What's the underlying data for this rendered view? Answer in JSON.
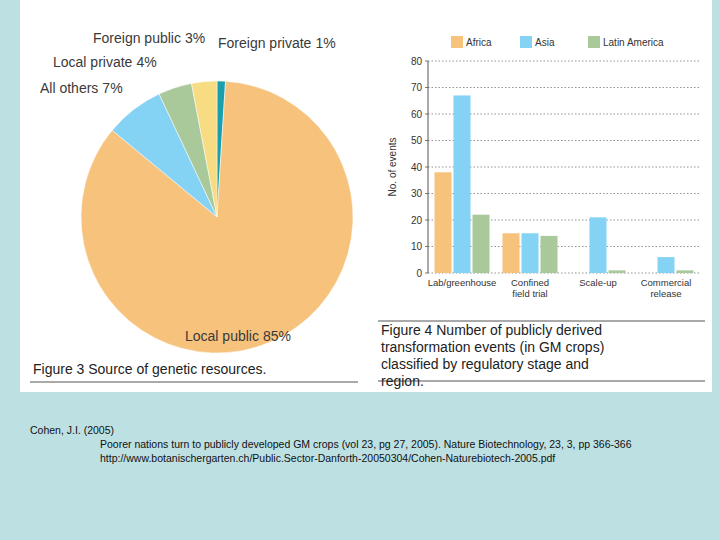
{
  "chart_data": [
    {
      "type": "pie",
      "title": "Figure 3  Source of genetic resources.",
      "categories": [
        "Foreign private",
        "Local public",
        "All others",
        "Local private",
        "Foreign public"
      ],
      "values": [
        1,
        85,
        7,
        4,
        3
      ],
      "value_labels": [
        "1%",
        "85%",
        "7%",
        "4%",
        "3%"
      ],
      "colors": [
        "#1a9fae",
        "#f6c27c",
        "#84d2f4",
        "#a9c99b",
        "#f7dc84"
      ]
    },
    {
      "type": "bar",
      "title": "Figure 4  Number of publicly derived transformation events (in GM crops) classified by regulatory stage and region.",
      "y_label": "No. of events",
      "categories": [
        "Lab/greenhouse",
        "Confined field trial",
        "Scale-up",
        "Commercial release"
      ],
      "series": [
        {
          "name": "Africa",
          "color": "#f6c27c",
          "values": [
            38,
            15,
            0,
            0
          ]
        },
        {
          "name": "Asia",
          "color": "#84d2f4",
          "values": [
            67,
            15,
            21,
            6
          ]
        },
        {
          "name": "Latin America",
          "color": "#a9c99b",
          "values": [
            22,
            14,
            1,
            1
          ]
        }
      ],
      "ylim": [
        0,
        80
      ],
      "yticks": [
        0,
        10,
        20,
        30,
        40,
        50,
        60,
        70,
        80
      ],
      "grid": true,
      "legend": "top"
    }
  ],
  "citation": {
    "author": "Cohen, J.I. (2005)",
    "lines": [
      "Poorer nations turn to publicly developed GM crops (vol 23, pg 27, 2005). Nature Biotechnology, 23, 3, pp 366-366",
      "http://www.botanischergarten.ch/Public.Sector-Danforth-20050304/Cohen-Naturebiotech-2005.pdf"
    ]
  }
}
